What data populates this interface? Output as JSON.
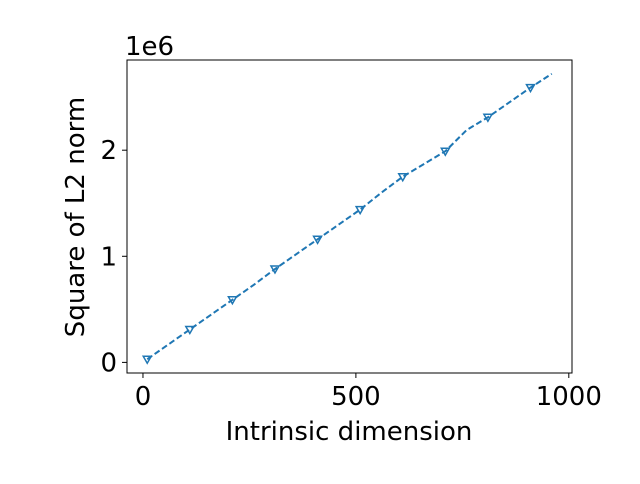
{
  "chart_data": {
    "type": "line",
    "x_label": "Intrinsic dimension",
    "y_label": "Square of L2 norm",
    "y_offset_label": "1e6",
    "x": [
      10,
      60,
      110,
      160,
      210,
      260,
      310,
      360,
      410,
      460,
      510,
      560,
      610,
      660,
      710,
      760,
      810,
      860,
      910,
      960
    ],
    "series": [
      {
        "color": "#1f77b4",
        "values": [
          0.03,
          0.17,
          0.31,
          0.45,
          0.59,
          0.73,
          0.88,
          1.02,
          1.16,
          1.3,
          1.44,
          1.6,
          1.75,
          1.87,
          1.99,
          2.19,
          2.31,
          2.45,
          2.59,
          2.72
        ]
      }
    ],
    "marker_every": 2,
    "xlim": [
      -37.5,
      1007.5
    ],
    "xticks": [
      0,
      500,
      1000
    ],
    "ylim": [
      -0.1,
      2.85
    ],
    "yticks": [
      0,
      1,
      2
    ]
  }
}
